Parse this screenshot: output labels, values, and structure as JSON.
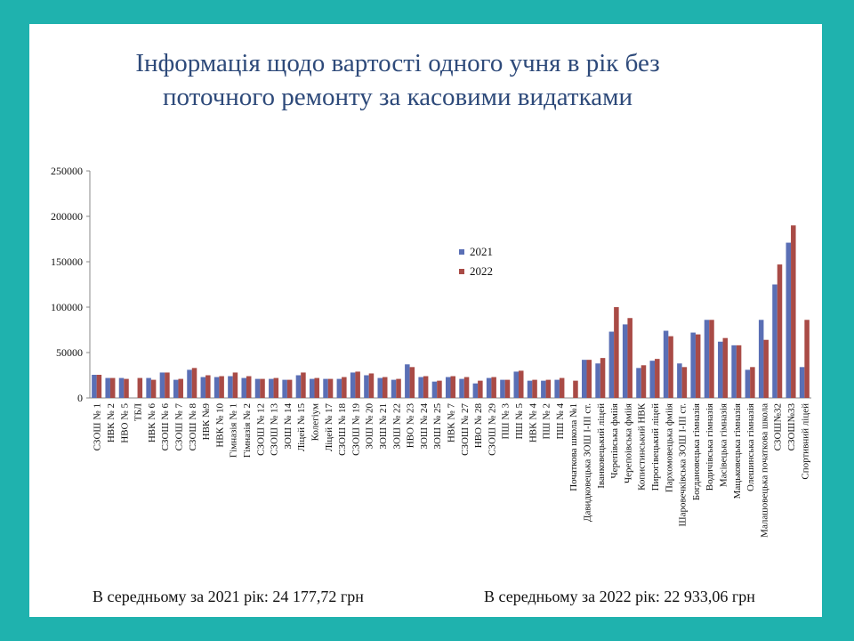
{
  "title_line1": "Інформація щодо вартості одного учня в рік без",
  "title_line2": "поточного ремонту за касовими видатками",
  "footer": {
    "avg_2021": "В середньому  за 2021 рік: 24 177,72 грн",
    "avg_2022": "В середньому  за 2022 рік: 22 933,06 грн"
  },
  "colors": {
    "s2021": "#5a6fb5",
    "s2022": "#a94b46",
    "background": "#1fb2ae",
    "title": "#2e4a7a"
  },
  "chart_data": {
    "type": "bar",
    "title": "",
    "ylim": [
      0,
      250000
    ],
    "yticks": [
      0,
      50000,
      100000,
      150000,
      200000,
      250000
    ],
    "legend_position": "center-right",
    "grid": false,
    "categories": [
      "СЗОШ № 1",
      "НВК № 2",
      "НВО № 5",
      "ТБЛ",
      "НВК № 6",
      "СЗОШ № 6",
      "СЗОШ № 7",
      "СЗОШ № 8",
      "НВК №9",
      "НВК № 10",
      "Гімназія № 1",
      "Гімназія № 2",
      "СЗОШ № 12",
      "СЗОШ № 13",
      "ЗОШ № 14",
      "Ліцей № 15",
      "Колегіум",
      "Ліцей № 17",
      "СЗОШ № 18",
      "СЗОШ № 19",
      "ЗОШ № 20",
      "ЗОШ № 21",
      "ЗОШ № 22",
      "НВО № 23",
      "ЗОШ № 24",
      "ЗОШ № 25",
      "НВК № 7",
      "СЗОШ № 27",
      "НВО № 28",
      "СЗОШ № 29",
      "ПШ № 3",
      "ПШ № 5",
      "НВК № 4",
      "ПШ № 2",
      "ПШ № 4",
      "Початкова школа №1",
      "Давидковецька ЗОШ І-ІІІ ст.",
      "Іванковецький ліцей",
      "Черепівська фміія",
      "Черепоівська фміія",
      "Копистинський НВК",
      "Пирогівецький ліцей",
      "Пархомовецька фміія",
      "Шаровечківська ЗОШ І-ІІІ ст.",
      "Богдановецька гімназія",
      "Водичівська гімназія",
      "Масівецька гімназія",
      "Мацьковецька гімназія",
      "Олешинська гімназія",
      "Малашовецька початкова школа",
      "СЗОШ№32",
      "СЗОШ№33",
      "Спортивний ліцей"
    ],
    "series": [
      {
        "name": "2021",
        "values": [
          25500,
          22000,
          22000,
          0,
          22000,
          28000,
          20000,
          31000,
          23000,
          23000,
          24000,
          22000,
          21000,
          21000,
          20000,
          25000,
          21000,
          21000,
          21000,
          28000,
          25000,
          22000,
          20000,
          37000,
          23000,
          18000,
          23000,
          21000,
          16000,
          22000,
          20000,
          29000,
          19000,
          19000,
          20000,
          0,
          42000,
          38000,
          73000,
          81000,
          33000,
          41000,
          74000,
          38000,
          72000,
          86000,
          62000,
          58000,
          31000,
          86000,
          125000,
          171000,
          34000
        ]
      },
      {
        "name": "2022",
        "values": [
          25500,
          22000,
          21000,
          22000,
          20000,
          28000,
          21000,
          33000,
          25000,
          24000,
          28000,
          24000,
          21000,
          22000,
          20000,
          28000,
          22000,
          21000,
          23000,
          29000,
          27000,
          23000,
          21000,
          34000,
          24000,
          19000,
          24000,
          23000,
          19000,
          23000,
          20000,
          30000,
          20000,
          20000,
          22000,
          19000,
          42000,
          44000,
          100000,
          88000,
          36000,
          43000,
          68000,
          34000,
          70000,
          86000,
          66000,
          58000,
          34000,
          64000,
          147000,
          190000,
          86000
        ]
      }
    ]
  }
}
